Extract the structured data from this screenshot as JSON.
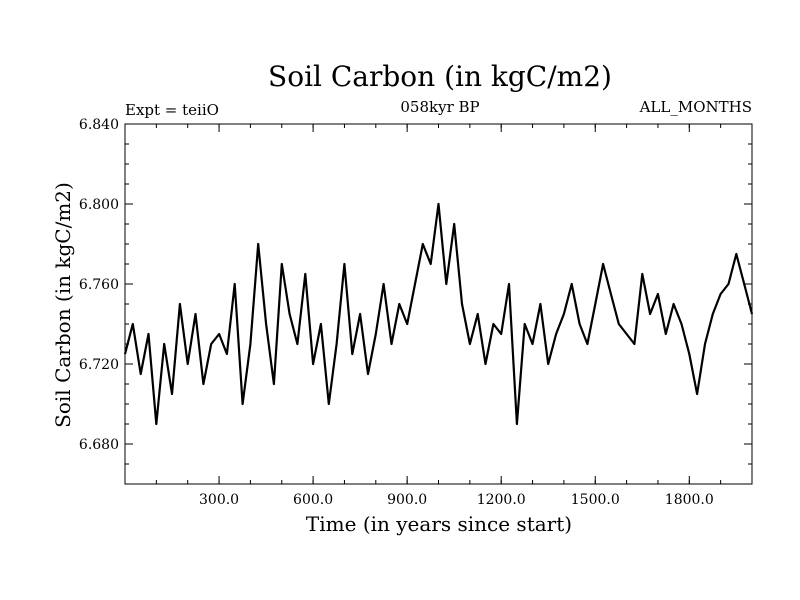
{
  "chart_data": {
    "type": "line",
    "title": "Soil Carbon (in kgC/m2)",
    "subtitle": "058kyr BP",
    "annotation_left": "Expt = teiiO",
    "annotation_right": "ALL_MONTHS",
    "xlabel": "Time (in years since start)",
    "ylabel": "Soil Carbon (in kgC/m2)",
    "xlim": [
      0,
      2000
    ],
    "ylim": [
      6.66,
      6.84
    ],
    "x_ticks": [
      300,
      600,
      900,
      1200,
      1500,
      1800
    ],
    "x_tick_labels": [
      "300.0",
      "600.0",
      "900.0",
      "1200.0",
      "1500.0",
      "1800.0"
    ],
    "y_ticks": [
      6.68,
      6.72,
      6.76,
      6.8,
      6.84
    ],
    "y_tick_labels": [
      "6.680",
      "6.720",
      "6.760",
      "6.800",
      "6.840"
    ],
    "grid": false,
    "series": [
      {
        "color": "#000000",
        "x": [
          0,
          25,
          50,
          75,
          100,
          125,
          150,
          175,
          200,
          225,
          250,
          275,
          300,
          325,
          350,
          375,
          400,
          425,
          450,
          475,
          500,
          525,
          550,
          575,
          600,
          625,
          650,
          675,
          700,
          725,
          750,
          775,
          800,
          825,
          850,
          875,
          900,
          925,
          950,
          975,
          1000,
          1025,
          1050,
          1075,
          1100,
          1125,
          1150,
          1175,
          1200,
          1225,
          1250,
          1275,
          1300,
          1325,
          1350,
          1375,
          1400,
          1425,
          1450,
          1475,
          1500,
          1525,
          1550,
          1575,
          1600,
          1625,
          1650,
          1675,
          1700,
          1725,
          1750,
          1775,
          1800,
          1825,
          1850,
          1875,
          1900,
          1925,
          1950,
          1975,
          2000
        ],
        "y": [
          6.725,
          6.74,
          6.715,
          6.735,
          6.69,
          6.73,
          6.705,
          6.75,
          6.72,
          6.745,
          6.71,
          6.73,
          6.735,
          6.725,
          6.76,
          6.7,
          6.73,
          6.78,
          6.74,
          6.71,
          6.77,
          6.745,
          6.73,
          6.765,
          6.72,
          6.74,
          6.7,
          6.73,
          6.77,
          6.725,
          6.745,
          6.715,
          6.735,
          6.76,
          6.73,
          6.75,
          6.74,
          6.76,
          6.78,
          6.77,
          6.8,
          6.76,
          6.79,
          6.75,
          6.73,
          6.745,
          6.72,
          6.74,
          6.735,
          6.76,
          6.69,
          6.74,
          6.73,
          6.75,
          6.72,
          6.735,
          6.745,
          6.76,
          6.74,
          6.73,
          6.75,
          6.77,
          6.755,
          6.74,
          6.735,
          6.73,
          6.765,
          6.745,
          6.755,
          6.735,
          6.75,
          6.74,
          6.725,
          6.705,
          6.73,
          6.745,
          6.755,
          6.76,
          6.775,
          6.76,
          6.745
        ]
      }
    ]
  }
}
